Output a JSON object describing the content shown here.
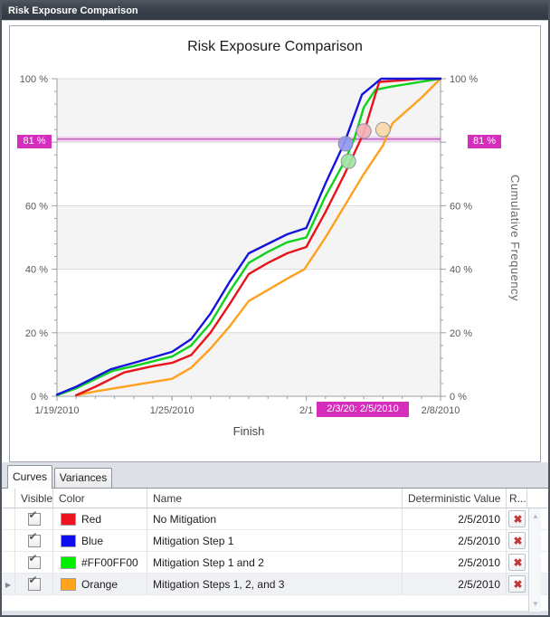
{
  "window": {
    "title": "Risk Exposure Comparison"
  },
  "chart_data": {
    "type": "line",
    "title": "Risk Exposure Comparison",
    "xlabel": "Finish",
    "ylabel_right": "Cumulative Frequency",
    "x_unit": "days since 1/19/2010",
    "x_domain_days": 20,
    "ylim": [
      0,
      100
    ],
    "x_ticks": [
      {
        "day": 0,
        "label": "1/19/2010"
      },
      {
        "day": 6,
        "label": "1/25/2010"
      },
      {
        "day": 13,
        "label": "2/1"
      },
      {
        "day": 20,
        "label": "2/8/2010"
      }
    ],
    "y_ticks": [
      {
        "pct": 0,
        "label": "0 %"
      },
      {
        "pct": 20,
        "label": "20 %"
      },
      {
        "pct": 40,
        "label": "40 %"
      },
      {
        "pct": 60,
        "label": "60 %"
      },
      {
        "pct": 100,
        "label": "100 %"
      }
    ],
    "y_minor_step_pct": 4,
    "x_minor_step_days": 1,
    "band_colors": [
      "#f4f4f5",
      "#ffffff"
    ],
    "grid_color": "#dadadd",
    "axis_color": "#9aa0a6",
    "tick_label_color": "#58595c",
    "threshold": {
      "pct": 81,
      "label": "81 %",
      "box_color": "#d52ebd",
      "line_color": "#c95fc6"
    },
    "x_callout": {
      "label": "2/3/20: 2/5/2010",
      "from_day": 13.5,
      "to_day": 18.35
    },
    "series": [
      {
        "name": "Mitigation Steps 1, 2, and 3",
        "color_name": "Orange",
        "color": "#ffa01e",
        "points": [
          [
            1,
            0.3
          ],
          [
            2,
            1.5
          ],
          [
            4,
            3.5
          ],
          [
            6,
            5.5
          ],
          [
            7,
            9
          ],
          [
            8,
            15
          ],
          [
            9,
            22
          ],
          [
            10,
            30
          ],
          [
            11,
            33.5
          ],
          [
            12,
            37
          ],
          [
            12.9,
            40
          ],
          [
            14,
            50
          ],
          [
            15,
            60
          ],
          [
            16,
            70
          ],
          [
            17,
            79
          ],
          [
            17.5,
            86
          ],
          [
            19,
            94
          ],
          [
            20,
            100
          ]
        ]
      },
      {
        "name": "Mitigation Step 1 and 2",
        "color_name": "#FF00FF00",
        "color": "#0fd31b",
        "points": [
          [
            0,
            0.3
          ],
          [
            1,
            2.5
          ],
          [
            2.9,
            8
          ],
          [
            4,
            9.5
          ],
          [
            6,
            12.5
          ],
          [
            7,
            16
          ],
          [
            8,
            23
          ],
          [
            9,
            33
          ],
          [
            10,
            42
          ],
          [
            11,
            45.5
          ],
          [
            12,
            48.5
          ],
          [
            13,
            50
          ],
          [
            14,
            63
          ],
          [
            15,
            74
          ],
          [
            15.5,
            81
          ],
          [
            16,
            91
          ],
          [
            16.6,
            96.5
          ],
          [
            17.4,
            97.5
          ],
          [
            20,
            100
          ]
        ]
      },
      {
        "name": "No Mitigation",
        "color_name": "Red",
        "color": "#e8141c",
        "points": [
          [
            1,
            0.3
          ],
          [
            2,
            3
          ],
          [
            3.5,
            7.5
          ],
          [
            5,
            9.5
          ],
          [
            6,
            10.5
          ],
          [
            7,
            13
          ],
          [
            8,
            20
          ],
          [
            9,
            29
          ],
          [
            10,
            38.5
          ],
          [
            11,
            42
          ],
          [
            12,
            45
          ],
          [
            13,
            47
          ],
          [
            14,
            58
          ],
          [
            15,
            70
          ],
          [
            16,
            83
          ],
          [
            16.5,
            93
          ],
          [
            16.8,
            99
          ],
          [
            18,
            99.5
          ],
          [
            18.9,
            100
          ],
          [
            20,
            100
          ]
        ]
      },
      {
        "name": "Mitigation Step 1",
        "color_name": "Blue",
        "color": "#1414dc",
        "points": [
          [
            0,
            0.5
          ],
          [
            1,
            3
          ],
          [
            2.8,
            8.5
          ],
          [
            4,
            10.5
          ],
          [
            6,
            14
          ],
          [
            7,
            18
          ],
          [
            8,
            26
          ],
          [
            9,
            36
          ],
          [
            10,
            45
          ],
          [
            11,
            48
          ],
          [
            12,
            51
          ],
          [
            13,
            53
          ],
          [
            14,
            67
          ],
          [
            15,
            80
          ],
          [
            15.9,
            95
          ],
          [
            16.9,
            100
          ],
          [
            20,
            100
          ]
        ]
      }
    ],
    "markers": [
      {
        "series": "Blue",
        "day": 15.05,
        "pct": 79.5,
        "fill": "#9299ec"
      },
      {
        "series": "Green",
        "day": 15.2,
        "pct": 74,
        "fill": "#9fe6a5"
      },
      {
        "series": "Red",
        "day": 16.0,
        "pct": 83.5,
        "fill": "#f2afb5"
      },
      {
        "series": "Orange",
        "day": 17.0,
        "pct": 84,
        "fill": "#f7d7a6"
      }
    ]
  },
  "tabs": [
    {
      "label": "Curves",
      "active": true
    },
    {
      "label": "Variances",
      "active": false
    }
  ],
  "table": {
    "columns": [
      "Visible",
      "Color",
      "Name",
      "Deterministic Value",
      "R..."
    ],
    "rows": [
      {
        "visible": true,
        "color": "#ed1420",
        "color_label": "Red",
        "name": "No Mitigation",
        "deterministic_value": "2/5/2010",
        "selected": false
      },
      {
        "visible": true,
        "color": "#0d0df0",
        "color_label": "Blue",
        "name": "Mitigation Step 1",
        "deterministic_value": "2/5/2010",
        "selected": false
      },
      {
        "visible": true,
        "color": "#00ef00",
        "color_label": "#FF00FF00",
        "name": "Mitigation Step 1 and 2",
        "deterministic_value": "2/5/2010",
        "selected": false
      },
      {
        "visible": true,
        "color": "#ffa41c",
        "color_label": "Orange",
        "name": "Mitigation Steps 1, 2, and 3",
        "deterministic_value": "2/5/2010",
        "selected": true
      }
    ]
  }
}
